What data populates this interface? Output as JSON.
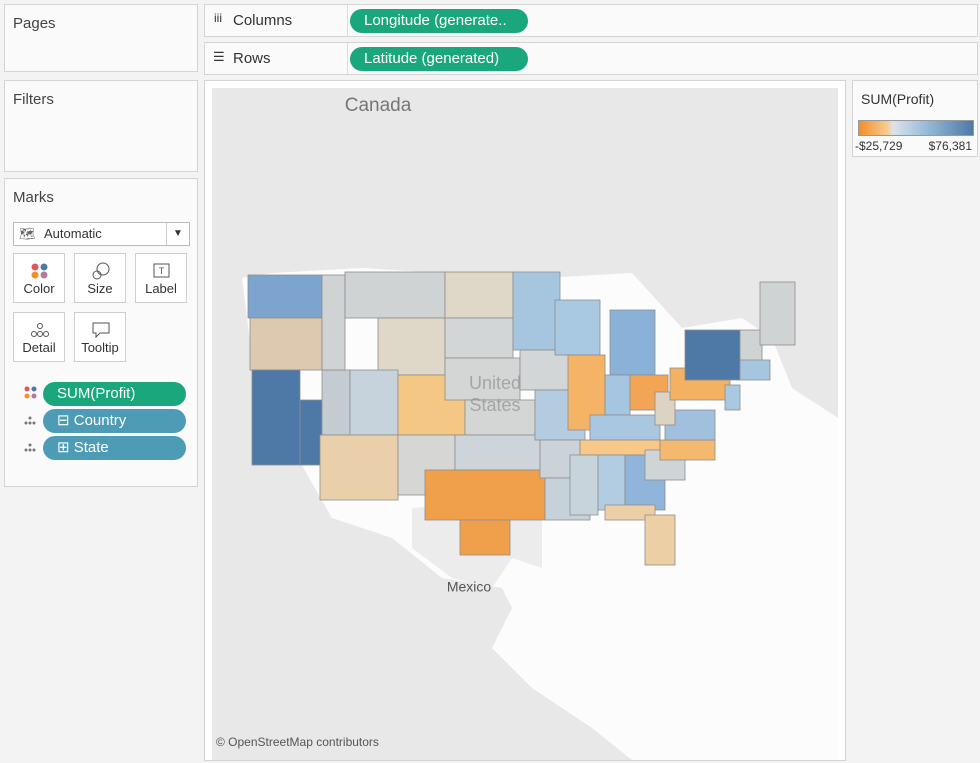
{
  "pages": {
    "title": "Pages"
  },
  "shelves": {
    "columns": {
      "label": "Columns",
      "pill": "Longitude (generate.."
    },
    "rows": {
      "label": "Rows",
      "pill": "Latitude (generated)"
    }
  },
  "filters": {
    "title": "Filters"
  },
  "marks": {
    "title": "Marks",
    "mark_type": "Automatic",
    "buttons": [
      "Color",
      "Size",
      "Label",
      "Detail",
      "Tooltip"
    ],
    "fields": [
      "SUM(Profit)",
      "Country",
      "State"
    ]
  },
  "map": {
    "labels": [
      "Canada",
      "United",
      "States",
      "Mexico"
    ],
    "attribution": "© OpenStreetMap contributors"
  },
  "legend": {
    "title": "SUM(Profit)",
    "min_label": "-$25,729",
    "max_label": "$76,381"
  }
}
